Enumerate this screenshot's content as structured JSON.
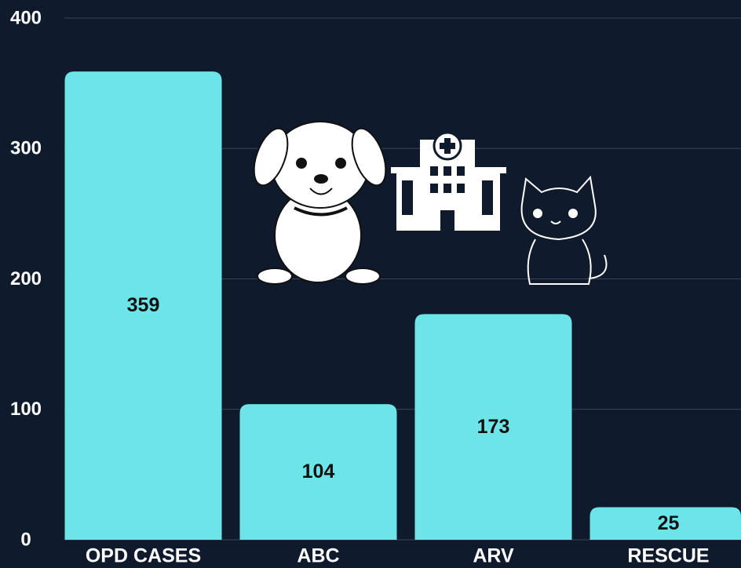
{
  "chart_data": {
    "type": "bar",
    "categories": [
      "OPD CASES",
      "ABC",
      "ARV",
      "RESCUE"
    ],
    "values": [
      359,
      104,
      173,
      25
    ],
    "color": "#6de5e8",
    "ylim": [
      0,
      400
    ],
    "yticks": [
      0,
      100,
      200,
      300,
      400
    ],
    "grid": true
  }
}
